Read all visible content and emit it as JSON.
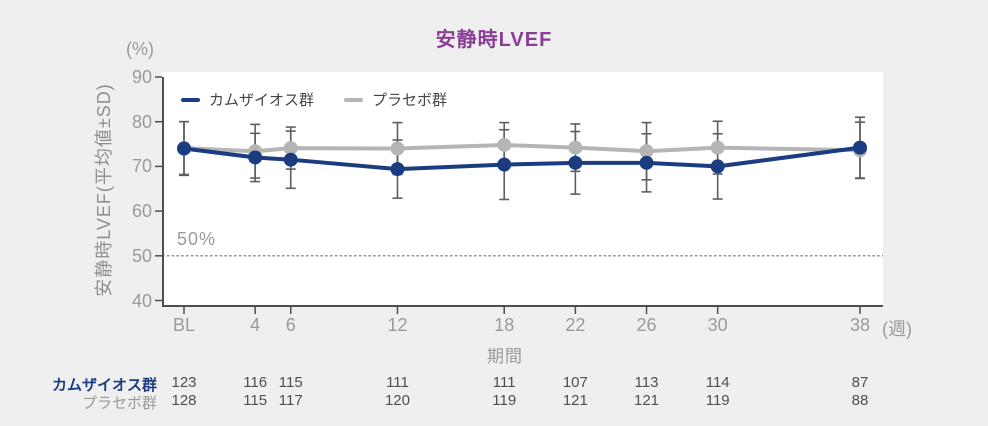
{
  "chart_data": {
    "type": "line",
    "title": "安静時LVEF",
    "xlabel": "期間",
    "x_axis_unit": "(週)",
    "y_axis_unit": "(%)",
    "ylabel": "安静時LVEF(平均値±SD)",
    "x_tick_labels": [
      "BL",
      "4",
      "6",
      "12",
      "18",
      "22",
      "26",
      "30",
      "38"
    ],
    "x_weeks": [
      0,
      4,
      6,
      12,
      18,
      22,
      26,
      30,
      38
    ],
    "yticks": [
      90,
      80,
      70,
      60,
      50,
      40
    ],
    "ylim": [
      40,
      90
    ],
    "grid": false,
    "legend_position": "top-left-inside",
    "error_bars": "mean±SD",
    "reference_line": {
      "value": 50,
      "label": "50%",
      "style": "dashed"
    },
    "series": [
      {
        "name": "カムザイオス群",
        "color": "#1b3c80",
        "means": [
          74.0,
          72.0,
          71.5,
          69.4,
          70.4,
          70.8,
          70.8,
          70.0,
          74.2
        ],
        "sd": [
          6.0,
          5.4,
          6.4,
          6.5,
          7.8,
          7.0,
          6.5,
          7.3,
          6.8
        ]
      },
      {
        "name": "プラセボ群",
        "color": "#b5b5b6",
        "means": [
          74.1,
          73.4,
          74.1,
          74.0,
          74.8,
          74.2,
          73.4,
          74.2,
          73.6
        ],
        "sd": [
          5.9,
          6.0,
          4.7,
          5.8,
          5.0,
          5.3,
          6.4,
          5.9,
          6.3
        ]
      }
    ],
    "n_table": {
      "rows": [
        {
          "label": "カムザイオス群",
          "values": [
            123,
            116,
            115,
            111,
            111,
            107,
            113,
            114,
            87
          ]
        },
        {
          "label": "プラセボ群",
          "values": [
            128,
            115,
            117,
            120,
            119,
            121,
            121,
            119,
            88
          ]
        }
      ]
    },
    "colors": {
      "camzyos": "#1b3c80",
      "placebo": "#b5b5b6",
      "title": "#8b3e95",
      "error_bar": "#5f5f5f",
      "axis": "#4f4f4f",
      "muted_text": "#9a9a9a",
      "reference_line": "#707070",
      "background": "#efeff0",
      "plot_background": "#ffffff"
    }
  }
}
